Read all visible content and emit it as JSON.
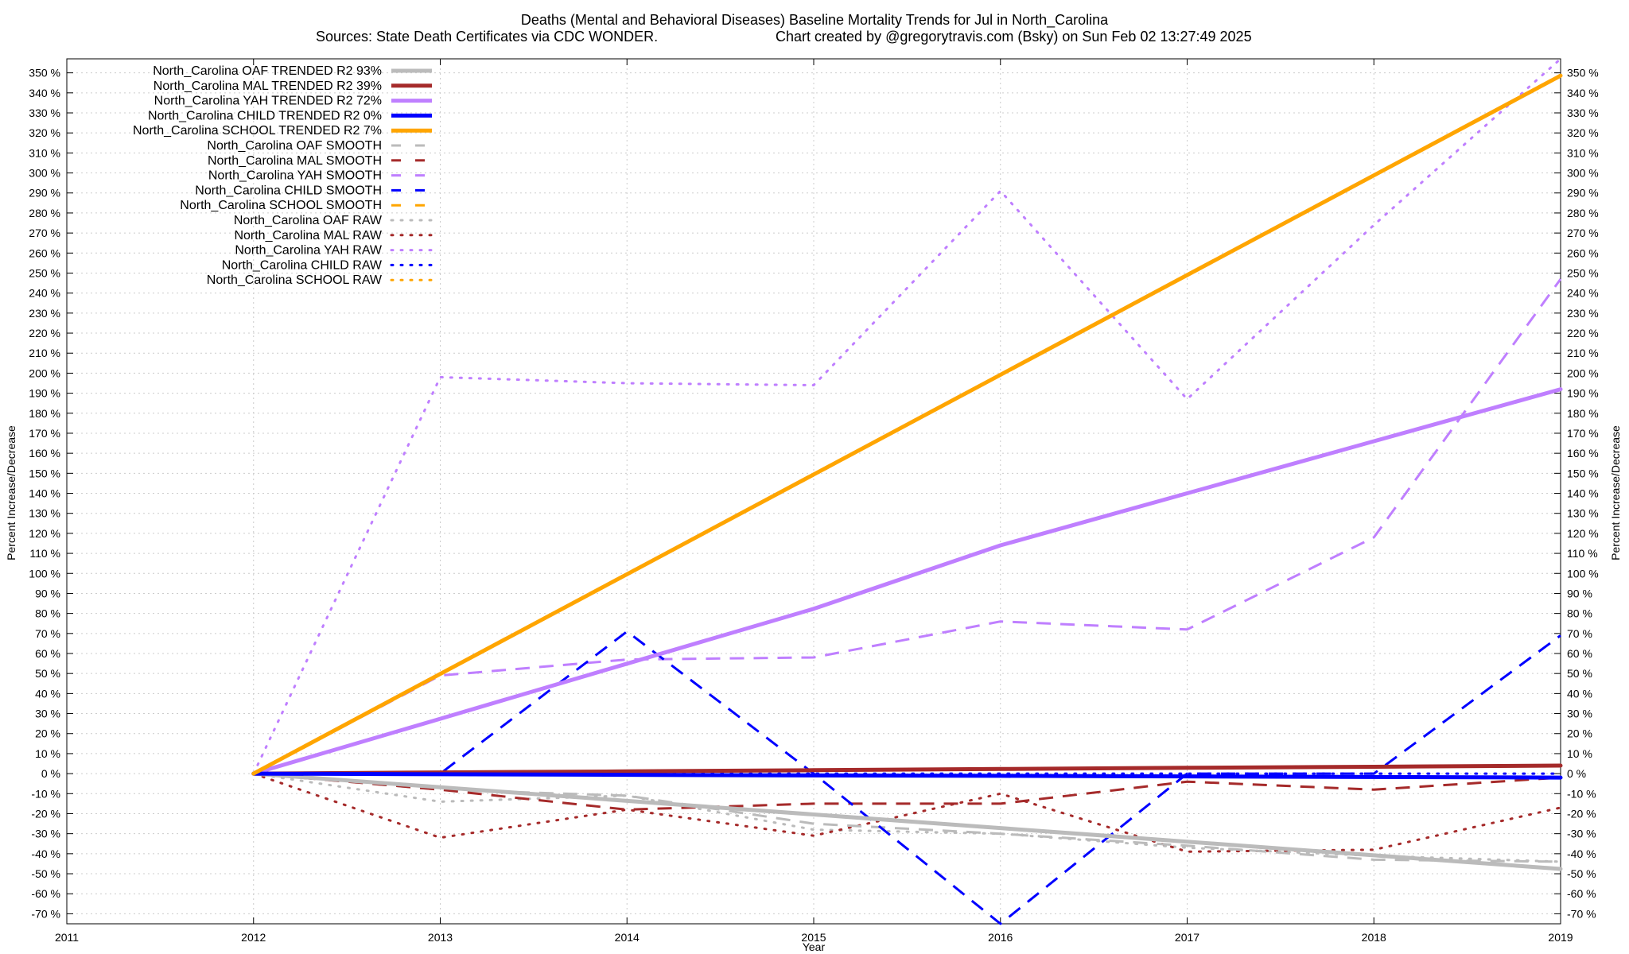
{
  "chart_data": {
    "type": "line",
    "title": "Deaths (Mental and Behavioral Diseases)  Baseline Mortality Trends for Jul in North_Carolina",
    "subtitle_left": "Sources: State Death Certificates via CDC WONDER.",
    "subtitle_right": "Chart created by @gregorytravis.com (Bsky) on Sun Feb 02 13:27:49 2025",
    "xlabel": "Year",
    "ylabel": "Percent Increase/Decrease",
    "y2label": "Percent Increase/Decrease",
    "xlim": [
      2011,
      2019
    ],
    "ylim": [
      -75,
      357
    ],
    "x_ticks": [
      "2011",
      "2012",
      "2013",
      "2014",
      "2015",
      "2016",
      "2017",
      "2018",
      "2019"
    ],
    "y_ticks": [
      "-70 %",
      "-60 %",
      "-50 %",
      "-40 %",
      "-30 %",
      "-20 %",
      "-10 %",
      "0 %",
      "10 %",
      "20 %",
      "30 %",
      "40 %",
      "50 %",
      "60 %",
      "70 %",
      "80 %",
      "90 %",
      "100 %",
      "110 %",
      "120 %",
      "130 %",
      "140 %",
      "150 %",
      "160 %",
      "170 %",
      "180 %",
      "190 %",
      "200 %",
      "210 %",
      "220 %",
      "230 %",
      "240 %",
      "250 %",
      "260 %",
      "270 %",
      "280 %",
      "290 %",
      "300 %",
      "310 %",
      "320 %",
      "330 %",
      "340 %",
      "350 %"
    ],
    "grid": true,
    "legend_position": "top-left",
    "x": [
      2012,
      2013,
      2014,
      2015,
      2016,
      2017,
      2018,
      2019
    ],
    "series": [
      {
        "name": "North_Carolina OAF TRENDED R2  93%",
        "color": "#bbbbbb",
        "style": "solid",
        "width": 5,
        "values": [
          0,
          -6.8,
          -13.6,
          -20.4,
          -27.2,
          -34,
          -40.8,
          -47.6
        ]
      },
      {
        "name": "North_Carolina MAL TRENDED R2  39%",
        "color": "#a52a2a",
        "style": "solid",
        "width": 5,
        "values": [
          0,
          0.6,
          1.1,
          1.7,
          2.3,
          2.9,
          3.4,
          4
        ]
      },
      {
        "name": "North_Carolina YAH TRENDED R2  72%",
        "color": "#bf7fff",
        "style": "solid",
        "width": 5,
        "values": [
          0,
          27.4,
          54.9,
          82.3,
          114,
          140,
          166,
          192
        ]
      },
      {
        "name": "North_Carolina CHILD TRENDED R2   0%",
        "color": "#0000ff",
        "style": "solid",
        "width": 5,
        "values": [
          0,
          -0.3,
          -0.6,
          -0.9,
          -1.1,
          -1.4,
          -1.7,
          -2
        ]
      },
      {
        "name": "North_Carolina SCHOOL TRENDED R2   7%",
        "color": "#ffa500",
        "style": "solid",
        "width": 5,
        "values": [
          0,
          49.8,
          99.6,
          149.4,
          199.2,
          249,
          298.8,
          348.6
        ]
      },
      {
        "name": "North_Carolina OAF SMOOTH",
        "color": "#bbbbbb",
        "style": "dash",
        "width": 3,
        "values": [
          0,
          -8,
          -11,
          -25,
          -30,
          -36,
          -43,
          -44
        ]
      },
      {
        "name": "North_Carolina MAL SMOOTH",
        "color": "#a52a2a",
        "style": "dash",
        "width": 3,
        "values": [
          0,
          -8,
          -18,
          -15,
          -15,
          -4,
          -8,
          -2
        ]
      },
      {
        "name": "North_Carolina YAH SMOOTH",
        "color": "#bf7fff",
        "style": "dash",
        "width": 3,
        "values": [
          0,
          49,
          57,
          58,
          76,
          72,
          118,
          247
        ]
      },
      {
        "name": "North_Carolina CHILD SMOOTH",
        "color": "#0000ff",
        "style": "dash",
        "width": 3,
        "values": [
          0,
          0,
          71,
          0,
          -75,
          0,
          0,
          69
        ]
      },
      {
        "name": "North_Carolina SCHOOL SMOOTH",
        "color": "#ffa500",
        "style": "dash",
        "width": 3,
        "values": [
          0,
          50,
          100,
          149,
          199,
          249,
          299,
          349
        ]
      },
      {
        "name": "North_Carolina OAF RAW",
        "color": "#bbbbbb",
        "style": "dot",
        "width": 3,
        "values": [
          0,
          -14,
          -11,
          -28,
          -30,
          -37,
          -41,
          -44
        ]
      },
      {
        "name": "North_Carolina MAL RAW",
        "color": "#a52a2a",
        "style": "dot",
        "width": 3,
        "values": [
          0,
          -32,
          -18,
          -31,
          -10,
          -39,
          -38,
          -17
        ]
      },
      {
        "name": "North_Carolina YAH RAW",
        "color": "#bf7fff",
        "style": "dot",
        "width": 3,
        "values": [
          0,
          198,
          195,
          194,
          291,
          187,
          274,
          357
        ]
      },
      {
        "name": "North_Carolina CHILD RAW",
        "color": "#0000ff",
        "style": "dot",
        "width": 3,
        "values": [
          0,
          0,
          0,
          0,
          0,
          0,
          0,
          0
        ]
      },
      {
        "name": "North_Carolina SCHOOL RAW",
        "color": "#ffa500",
        "style": "dot",
        "width": 3,
        "values": [
          0,
          50,
          100,
          149,
          199,
          249,
          299,
          349
        ]
      }
    ]
  }
}
